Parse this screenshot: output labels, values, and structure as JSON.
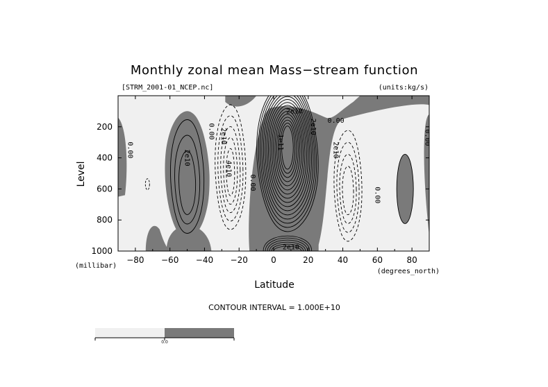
{
  "chart_data": {
    "type": "contour",
    "title": "Monthly zonal mean Mass−stream function",
    "file_label": "[STRM_2001-01_NCEP.nc]",
    "units_label": "(units:kg/s)",
    "xlabel": "Latitude",
    "ylabel": "Level",
    "x_unit": "(degrees_north)",
    "y_unit": "(millibar)",
    "xlim": [
      -90,
      90
    ],
    "ylim": [
      0,
      1000
    ],
    "y_reversed": true,
    "x_ticks": [
      -80,
      -60,
      -40,
      -20,
      0,
      20,
      40,
      60,
      80
    ],
    "x_tick_labels": [
      "−80",
      "−60",
      "−40",
      "−20",
      "0",
      "20",
      "40",
      "60",
      "80"
    ],
    "y_ticks": [
      200,
      400,
      600,
      800,
      1000
    ],
    "y_tick_labels": [
      "200",
      "400",
      "600",
      "800",
      "1000"
    ],
    "contour_interval": 10000000000.0,
    "contour_interval_label": "CONTOUR INTERVAL = 1.000E+10",
    "shading": {
      "negative_color": "#f0f0f0",
      "positive_color": "#7a7a7a"
    },
    "colorbar": {
      "labels": [
        "",
        "0.0",
        ""
      ],
      "colors": [
        "#f0f0f0",
        "#7a7a7a"
      ]
    },
    "cells": [
      {
        "lat": -50,
        "p": 500,
        "sign": "positive",
        "peak": 60000000000.0
      },
      {
        "lat": -25,
        "p": 430,
        "sign": "negative",
        "peak": -60000000000.0
      },
      {
        "lat": 8,
        "p": 380,
        "sign": "positive",
        "peak": 180000000000.0
      },
      {
        "lat": 43,
        "p": 600,
        "sign": "negative",
        "peak": -50000000000.0
      },
      {
        "lat": 76,
        "p": 600,
        "sign": "positive",
        "peak": 10000000000.0
      }
    ],
    "contour_labels": [
      {
        "text": "0.00",
        "lat": -83,
        "p": 350,
        "rotate": 90
      },
      {
        "text": "2e10",
        "lat": -50,
        "p": 400,
        "rotate": 90
      },
      {
        "text": "0.00",
        "lat": -36,
        "p": 230,
        "rotate": 90
      },
      {
        "text": "2e10",
        "lat": -29,
        "p": 260,
        "rotate": 90
      },
      {
        "text": "4e10",
        "lat": -26,
        "p": 470,
        "rotate": 90
      },
      {
        "text": "0.00",
        "lat": -12,
        "p": 560,
        "rotate": 90
      },
      {
        "text": "1e11",
        "lat": 4,
        "p": 300,
        "rotate": 90
      },
      {
        "text": "2e10",
        "lat": 12,
        "p": 100,
        "rotate": 0
      },
      {
        "text": "2e10",
        "lat": 23,
        "p": 200,
        "rotate": 90
      },
      {
        "text": "0.00",
        "lat": 36,
        "p": 160,
        "rotate": 0
      },
      {
        "text": "2e10",
        "lat": 36,
        "p": 350,
        "rotate": 90
      },
      {
        "text": "0.00",
        "lat": 60,
        "p": 640,
        "rotate": 90
      },
      {
        "text": "0.00",
        "lat": 89,
        "p": 270,
        "rotate": 90
      },
      {
        "text": "2e10",
        "lat": 10,
        "p": 975,
        "rotate": 0
      }
    ]
  }
}
